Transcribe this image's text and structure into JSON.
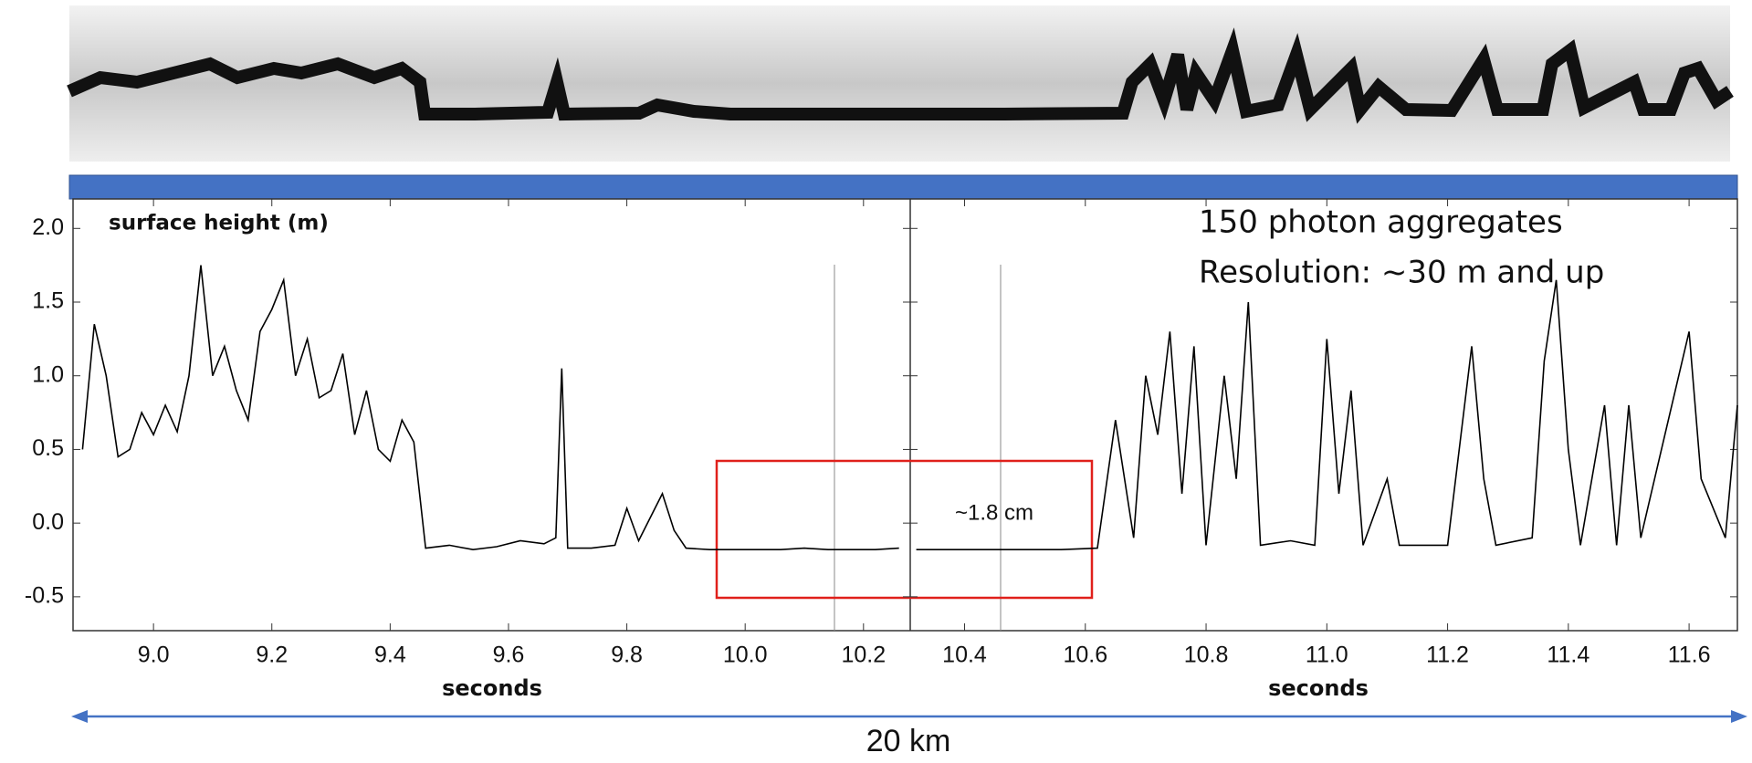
{
  "chart_data": [
    {
      "type": "line",
      "ylabel": "surface height (m)",
      "xlabel": "seconds",
      "annotation": "~1.8 cm",
      "x": [
        8.88,
        8.9,
        8.92,
        8.94,
        8.96,
        8.98,
        9.0,
        9.02,
        9.04,
        9.06,
        9.08,
        9.1,
        9.12,
        9.14,
        9.16,
        9.18,
        9.2,
        9.22,
        9.24,
        9.26,
        9.28,
        9.3,
        9.32,
        9.34,
        9.36,
        9.38,
        9.4,
        9.42,
        9.44,
        9.46,
        9.5,
        9.54,
        9.58,
        9.62,
        9.66,
        9.68,
        9.69,
        9.7,
        9.74,
        9.78,
        9.8,
        9.82,
        9.86,
        9.88,
        9.9,
        9.94,
        9.98,
        10.02,
        10.06,
        10.1,
        10.14,
        10.18,
        10.22,
        10.26
      ],
      "series": [
        {
          "color": "#000000",
          "values": [
            0.5,
            1.35,
            1.0,
            0.45,
            0.5,
            0.75,
            0.6,
            0.8,
            0.62,
            1.0,
            1.75,
            1.0,
            1.2,
            0.9,
            0.7,
            1.3,
            1.45,
            1.65,
            1.0,
            1.25,
            0.85,
            0.9,
            1.15,
            0.6,
            0.9,
            0.5,
            0.42,
            0.7,
            0.55,
            -0.17,
            -0.15,
            -0.18,
            -0.16,
            -0.12,
            -0.14,
            -0.1,
            1.05,
            -0.17,
            -0.17,
            -0.15,
            0.1,
            -0.12,
            0.2,
            -0.05,
            -0.17,
            -0.18,
            -0.18,
            -0.18,
            -0.18,
            -0.17,
            -0.18,
            -0.18,
            -0.18,
            -0.17
          ]
        }
      ],
      "xlim": [
        8.864,
        10.279
      ],
      "ylim": [
        -0.73,
        2.2
      ],
      "xticks": [
        {
          "value": 9,
          "label": "9.0"
        },
        9.2,
        9.4,
        9.6,
        9.8,
        {
          "value": 10,
          "label": "10.0"
        },
        10.2
      ],
      "yticks": [
        -0.5,
        {
          "value": 0,
          "label": "0.0"
        },
        0.5,
        {
          "value": 1,
          "label": "1.0"
        },
        1.5,
        {
          "value": 2,
          "label": "2.0"
        }
      ]
    },
    {
      "type": "line",
      "xlabel": "seconds",
      "annotations": [
        "150 photon aggregates",
        "Resolution: ~30 m and up"
      ],
      "x": [
        10.32,
        10.4,
        10.48,
        10.56,
        10.62,
        10.65,
        10.68,
        10.7,
        10.72,
        10.74,
        10.76,
        10.78,
        10.8,
        10.83,
        10.85,
        10.87,
        10.89,
        10.94,
        10.98,
        11.0,
        11.02,
        11.04,
        11.06,
        11.1,
        11.12,
        11.2,
        11.24,
        11.26,
        11.28,
        11.34,
        11.36,
        11.38,
        11.4,
        11.42,
        11.46,
        11.48,
        11.5,
        11.52,
        11.56,
        11.6,
        11.62,
        11.66,
        11.68
      ],
      "series": [
        {
          "color": "#000000",
          "values": [
            -0.18,
            -0.18,
            -0.18,
            -0.18,
            -0.17,
            0.7,
            -0.1,
            1.0,
            0.6,
            1.3,
            0.2,
            1.2,
            -0.15,
            1.0,
            0.3,
            1.5,
            -0.15,
            -0.12,
            -0.15,
            1.25,
            0.2,
            0.9,
            -0.15,
            0.3,
            -0.15,
            -0.15,
            1.2,
            0.3,
            -0.15,
            -0.1,
            1.1,
            1.65,
            0.5,
            -0.15,
            0.8,
            -0.15,
            0.8,
            -0.1,
            0.6,
            1.3,
            0.3,
            -0.1,
            0.8
          ]
        }
      ],
      "xlim": [
        10.31,
        11.68
      ],
      "ylim": [
        -0.73,
        2.2
      ],
      "xticks": [
        10.4,
        10.6,
        10.8,
        {
          "value": 11,
          "label": "11.0"
        },
        11.2,
        11.4,
        11.6
      ]
    }
  ],
  "scale_bar": {
    "label": "20 km"
  }
}
